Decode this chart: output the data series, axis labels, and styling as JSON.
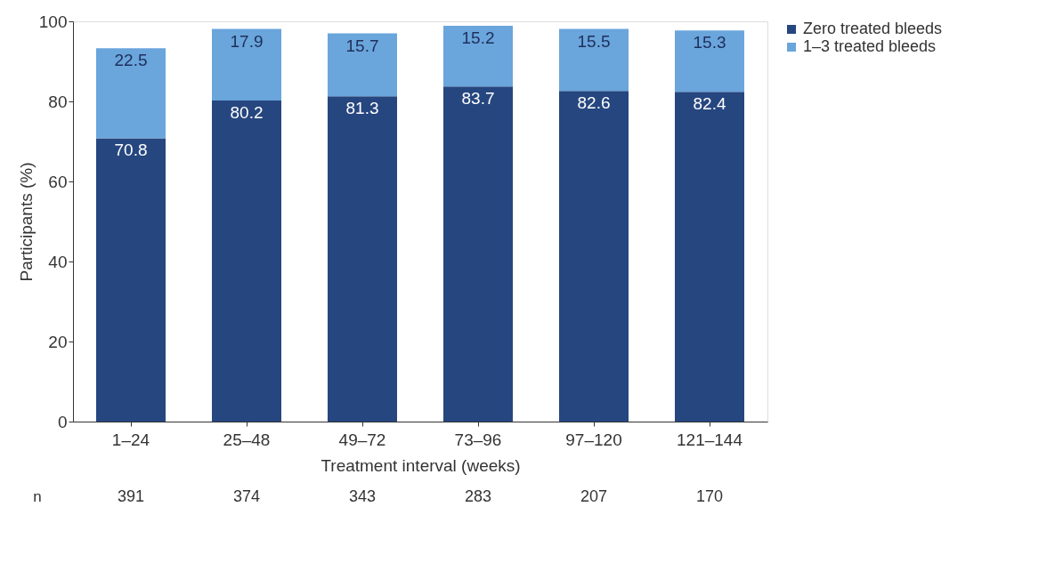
{
  "chart_data": {
    "type": "bar",
    "stacked": true,
    "ylabel": "Participants (%)",
    "xlabel": "Treatment interval (weeks)",
    "categories": [
      "1–24",
      "25–48",
      "49–72",
      "73–96",
      "97–120",
      "121–144"
    ],
    "series": [
      {
        "name": "Zero treated bleeds",
        "color": "#26467f",
        "values": [
          70.8,
          80.2,
          81.3,
          83.7,
          82.6,
          82.4
        ]
      },
      {
        "name": "1–3 treated bleeds",
        "color": "#6aa5dc",
        "values": [
          22.5,
          17.9,
          15.7,
          15.2,
          15.5,
          15.3
        ]
      }
    ],
    "ylim": [
      0,
      100
    ],
    "yticks": [
      0,
      20,
      40,
      60,
      80,
      100
    ],
    "grid": false,
    "legend": "right",
    "data_labels": true,
    "annotations": [
      "n",
      "391",
      "374",
      "343",
      "283",
      "207",
      "170"
    ]
  }
}
